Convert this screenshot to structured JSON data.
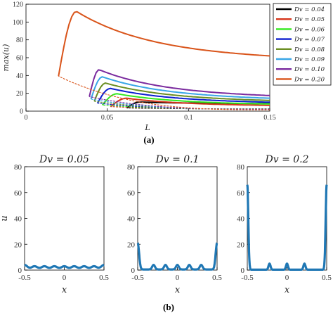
{
  "chart_data": [
    {
      "panel": "a",
      "type": "line",
      "caption": "(a)",
      "xlabel": "L",
      "ylabel": "max(u)",
      "xlim": [
        0,
        0.15
      ],
      "ylim": [
        0,
        120
      ],
      "xticks": [
        0,
        0.05,
        0.1,
        0.15
      ],
      "xtick_labels": [
        "0",
        "0.05",
        "0.1",
        "0.15"
      ],
      "yticks": [
        0,
        20,
        40,
        60,
        80,
        100,
        120
      ],
      "ytick_labels": [
        "0",
        "20",
        "40",
        "60",
        "80",
        "100",
        "120"
      ],
      "legend": "top-right",
      "series": [
        {
          "name": "D_v = 0.04",
          "label": "Dv = 0.04",
          "color": "#000000",
          "L0": 0.062,
          "tail": 2.5,
          "peakL": 0.07,
          "peak": 10.2,
          "end": 8.5
        },
        {
          "name": "D_v = 0.05",
          "label": "Dv = 0.05",
          "color": "#d6361c",
          "L0": 0.052,
          "tail": 2.4,
          "peakL": 0.062,
          "peak": 14.5,
          "end": 6.5
        },
        {
          "name": "D_v = 0.06",
          "label": "Dv = 0.06",
          "color": "#33e81f",
          "L0": 0.047,
          "tail": 2.3,
          "peakL": 0.056,
          "peak": 19.5,
          "end": 8.0
        },
        {
          "name": "D_v = 0.07",
          "label": "Dv = 0.07",
          "color": "#0d1fcf",
          "L0": 0.044,
          "tail": 2.2,
          "peakL": 0.052,
          "peak": 25.5,
          "end": 10.0
        },
        {
          "name": "D_v = 0.08",
          "label": "Dv = 0.08",
          "color": "#6b8e23",
          "L0": 0.042,
          "tail": 2.1,
          "peakL": 0.049,
          "peak": 31.5,
          "end": 12.0
        },
        {
          "name": "D_v = 0.09",
          "label": "Dv = 0.09",
          "color": "#39a6e6",
          "L0": 0.04,
          "tail": 2.0,
          "peakL": 0.047,
          "peak": 38.5,
          "end": 14.5
        },
        {
          "name": "D_v = 0.10",
          "label": "Dv = 0.10",
          "color": "#7a2a9e",
          "L0": 0.039,
          "tail": 1.9,
          "peakL": 0.045,
          "peak": 46.5,
          "end": 17.5
        },
        {
          "name": "D_v = 0.20",
          "label": "Dv = 0.20",
          "color": "#d9541a",
          "L0": 0.02,
          "tail": 1.5,
          "peakL": 0.031,
          "peak": 112.0,
          "end": 62.0
        }
      ]
    },
    {
      "panel": "b1",
      "type": "line",
      "title": "Dv = 0.05",
      "xlabel": "x",
      "ylabel": "u",
      "xlim": [
        -0.5,
        0.5
      ],
      "ylim": [
        0,
        80
      ],
      "xticks": [
        -0.5,
        0,
        0.5
      ],
      "xtick_labels": [
        "-0.5",
        "0",
        "0.5"
      ],
      "yticks": [
        0,
        20,
        40,
        60,
        80
      ],
      "ytick_labels": [
        "0",
        "20",
        "40",
        "60",
        "80"
      ],
      "color": "#1f77b4",
      "peaks_x": [
        -0.5,
        -0.375,
        -0.25,
        -0.125,
        0,
        0.125,
        0.25,
        0.375,
        0.5
      ],
      "peaks_h": [
        4,
        3,
        3,
        3,
        3,
        3,
        3,
        3,
        4
      ],
      "width": 0.045,
      "base": 1.2
    },
    {
      "panel": "b2",
      "type": "line",
      "title": "Dv = 0.1",
      "xlabel": "x",
      "ylabel": "u",
      "xlim": [
        -0.5,
        0.5
      ],
      "ylim": [
        0,
        80
      ],
      "xticks": [
        -0.5,
        0,
        0.5
      ],
      "xtick_labels": [
        "-0.5",
        "0",
        "0.5"
      ],
      "yticks": [
        0,
        20,
        40,
        60,
        80
      ],
      "ytick_labels": [
        "0",
        "20",
        "40",
        "60",
        "80"
      ],
      "color": "#1f77b4",
      "peaks_x": [
        -0.5,
        -0.3,
        -0.15,
        0,
        0.15,
        0.3,
        0.5
      ],
      "peaks_h": [
        21,
        4,
        4,
        4,
        4,
        4,
        21
      ],
      "width": 0.025,
      "base": 0.5
    },
    {
      "panel": "b3",
      "type": "line",
      "title": "Dv = 0.2",
      "xlabel": "x",
      "ylabel": "u",
      "xlim": [
        -0.5,
        0.5
      ],
      "ylim": [
        0,
        80
      ],
      "xticks": [
        -0.5,
        0,
        0.5
      ],
      "xtick_labels": [
        "-0.5",
        "0",
        "0.5"
      ],
      "yticks": [
        0,
        20,
        40,
        60,
        80
      ],
      "ytick_labels": [
        "0",
        "20",
        "40",
        "60",
        "80"
      ],
      "color": "#1f77b4",
      "peaks_x": [
        -0.5,
        -0.22,
        0,
        0.22,
        0.5
      ],
      "peaks_h": [
        66,
        5,
        5,
        5,
        66
      ],
      "width": 0.018,
      "base": 0.3
    }
  ],
  "captions": {
    "a": "(a)",
    "b": "(b)"
  }
}
